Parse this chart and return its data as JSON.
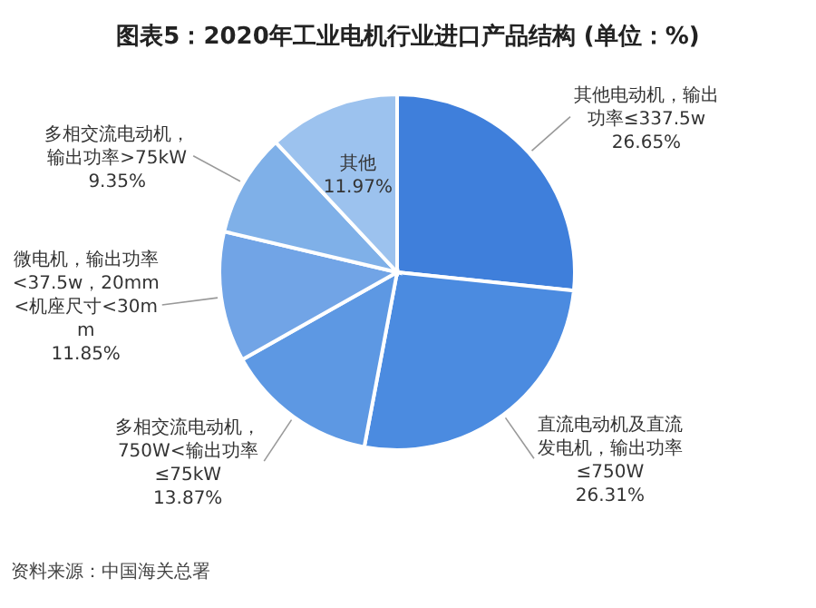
{
  "chart_data": {
    "type": "pie",
    "title": "图表5：2020年工业电机行业进口产品结构 (单位：%)",
    "categories": [
      "其他电动机，输出功率≤337.5w",
      "直流电动机及直流发电机，输出功率≤750W",
      "多相交流电动机，750W<输出功率≤75kW",
      "微电机，输出功率<37.5w，20mm<机座尺寸<30mm",
      "多相交流电动机，输出功率>75kW",
      "其他"
    ],
    "values": [
      26.65,
      26.31,
      13.87,
      11.85,
      9.35,
      11.97
    ],
    "value_labels": [
      "26.65%",
      "26.31%",
      "13.87%",
      "11.85%",
      "9.35%",
      "11.97%"
    ],
    "colors": [
      "#3f7fdb",
      "#4b8be0",
      "#5d98e3",
      "#71a4e6",
      "#7fb0e8",
      "#9cc2ee"
    ],
    "annotations": [
      "资料来源：中国海关总署"
    ]
  }
}
